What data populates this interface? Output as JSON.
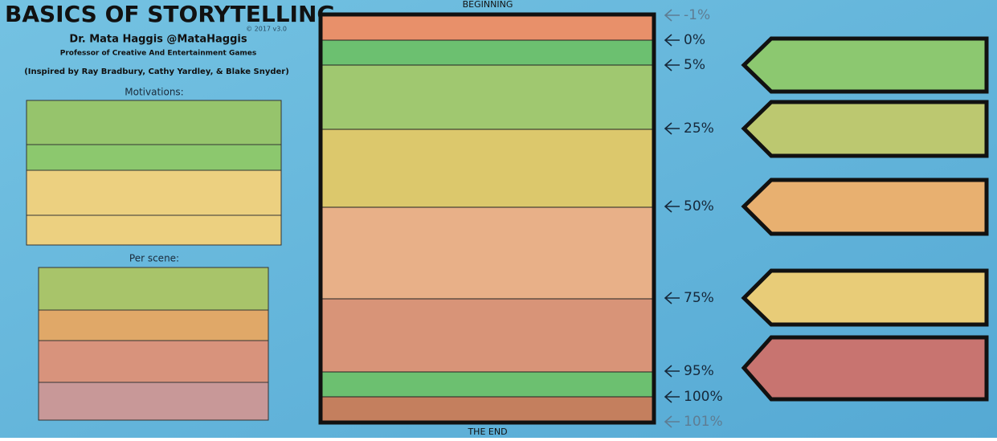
{
  "header": {
    "title": "BASICS OF STORYTELLING",
    "author": "Dr. Mata Haggis @MataHaggis",
    "affiliation": "Professor of Creative And Entertainment Games",
    "credit": "(Inspired by Ray Bradbury, Cathy Yardley, & Blake Snyder)",
    "version": "© 2017 v3.0"
  },
  "panels": {
    "motivations_label": "Motivations:",
    "per_scene_label": "Per scene:"
  },
  "timeline": {
    "start_label": "BEGINNING",
    "end_label": "THE END",
    "markers": [
      "-1%",
      "0%",
      "5%",
      "25%",
      "50%",
      "75%",
      "95%",
      "100%",
      "101%"
    ]
  }
}
